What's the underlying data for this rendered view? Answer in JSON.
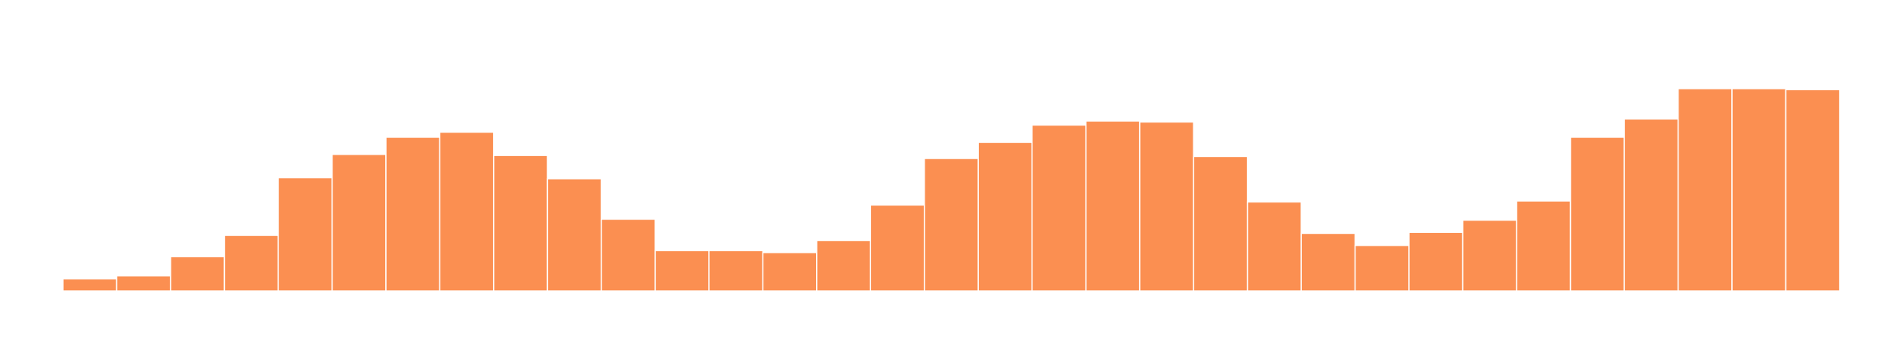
{
  "chart_data": {
    "type": "bar",
    "title": "",
    "xlabel": "",
    "ylabel": "",
    "grid": false,
    "legend": "none",
    "ylim": [
      0,
      100
    ],
    "bar_color": "#fb8f51",
    "bar_edge_color": "#ffffff",
    "values": [
      6,
      7.5,
      17,
      27.5,
      56,
      67.5,
      76,
      78.5,
      67,
      55.5,
      35.5,
      20,
      20,
      19,
      25,
      42.5,
      65.5,
      73.5,
      82,
      84,
      83.5,
      66.5,
      44,
      28.5,
      22.5,
      29,
      35,
      44.5,
      76,
      85,
      100,
      100,
      99.5
    ]
  }
}
